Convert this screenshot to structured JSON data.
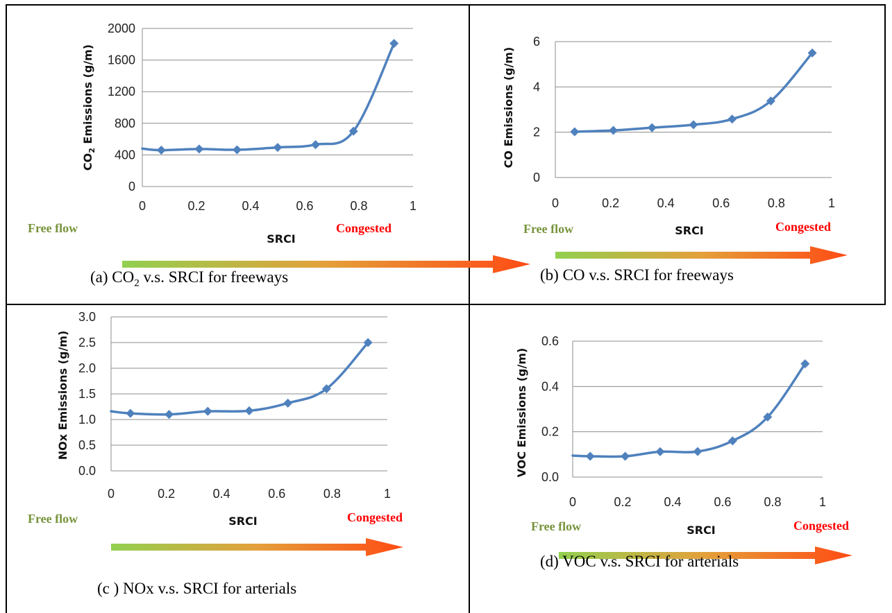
{
  "arrow_colors": {
    "start": "#92d050",
    "mid": "#e4a03a",
    "end": "#ff4b14"
  },
  "line_color": "#4f81bd",
  "panels": [
    {
      "id": "a",
      "free_label": "Free flow",
      "congested_label": "Congested",
      "caption": {
        "prefix": "(a) CO",
        "sub": "2",
        "suffix": " v.s. SRCI for freeways"
      },
      "chart_data": {
        "type": "line",
        "xlabel": "SRCI",
        "ylabel": {
          "prefix": "CO",
          "sub": "2",
          "suffix": " Emissions  (g/m)"
        },
        "xlim": [
          0,
          1
        ],
        "ylim": [
          0,
          2000
        ],
        "xticks": [
          "0",
          "0.2",
          "0.4",
          "0.6",
          "0.8",
          "1"
        ],
        "yticks": [
          "0",
          "400",
          "800",
          "1200",
          "1600",
          "2000"
        ],
        "grid": "horizontal",
        "x": [
          0.07,
          0.21,
          0.35,
          0.5,
          0.64,
          0.78,
          0.93
        ],
        "y": [
          460,
          475,
          465,
          495,
          530,
          700,
          1810
        ],
        "y_start": 480
      }
    },
    {
      "id": "b",
      "free_label": "Free flow",
      "congested_label": "Congested",
      "caption": {
        "prefix": "(b) CO v.s. SRCI for freeways",
        "sub": "",
        "suffix": ""
      },
      "chart_data": {
        "type": "line",
        "xlabel": "SRCI",
        "ylabel": {
          "prefix": "CO Emissions  (g/m)",
          "sub": "",
          "suffix": ""
        },
        "xlim": [
          0,
          1
        ],
        "ylim": [
          0,
          6
        ],
        "xticks": [
          "0",
          "0.2",
          "0.4",
          "0.6",
          "0.8",
          "1"
        ],
        "yticks": [
          "0",
          "2",
          "4",
          "6"
        ],
        "grid": "horizontal",
        "x": [
          0.07,
          0.21,
          0.35,
          0.5,
          0.64,
          0.78,
          0.93
        ],
        "y": [
          2.02,
          2.08,
          2.2,
          2.33,
          2.58,
          3.38,
          5.5
        ],
        "y_start": null
      }
    },
    {
      "id": "c",
      "free_label": "Free flow",
      "congested_label": "Congested",
      "caption": {
        "prefix": "(c ) NOx v.s. SRCI for arterials",
        "sub": "",
        "suffix": ""
      },
      "chart_data": {
        "type": "line",
        "xlabel": "SRCI",
        "ylabel": {
          "prefix": "NOx Emissions  (g/m)",
          "sub": "",
          "suffix": ""
        },
        "xlim": [
          0,
          1
        ],
        "ylim": [
          0,
          3
        ],
        "xticks": [
          "0",
          "0.2",
          "0.4",
          "0.6",
          "0.8",
          "1"
        ],
        "yticks": [
          "0.0",
          "0.5",
          "1.0",
          "1.5",
          "2.0",
          "2.5",
          "3.0"
        ],
        "grid": "horizontal",
        "x": [
          0.07,
          0.21,
          0.35,
          0.5,
          0.64,
          0.78,
          0.93
        ],
        "y": [
          1.12,
          1.1,
          1.16,
          1.17,
          1.32,
          1.6,
          2.5
        ],
        "y_start": 1.16
      }
    },
    {
      "id": "d",
      "free_label": "Free flow",
      "congested_label": "Congested",
      "caption": {
        "prefix": "(d) VOC v.s. SRCI for arterials",
        "sub": "",
        "suffix": ""
      },
      "chart_data": {
        "type": "line",
        "xlabel": "SRCI",
        "ylabel": {
          "prefix": "VOC Emissions  (g/m)",
          "sub": "",
          "suffix": ""
        },
        "xlim": [
          0,
          1
        ],
        "ylim": [
          0,
          0.6
        ],
        "xticks": [
          "0",
          "0.2",
          "0.4",
          "0.6",
          "0.8",
          "1"
        ],
        "yticks": [
          "0.0",
          "0.2",
          "0.4",
          "0.6"
        ],
        "grid": "horizontal",
        "x": [
          0.07,
          0.21,
          0.35,
          0.5,
          0.64,
          0.78,
          0.93
        ],
        "y": [
          0.092,
          0.092,
          0.112,
          0.113,
          0.16,
          0.265,
          0.5
        ],
        "y_start": 0.095
      }
    }
  ]
}
